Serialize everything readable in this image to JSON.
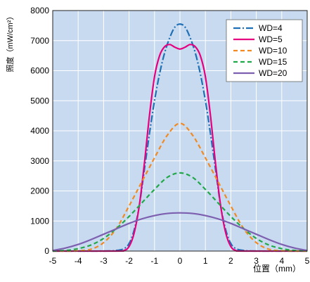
{
  "chart_data": {
    "type": "line",
    "title": "",
    "xlabel": "位置（mm）",
    "ylabel": "照度（mW/cm²）",
    "xlim": [
      -5,
      5
    ],
    "ylim": [
      0,
      8000
    ],
    "x_ticks": [
      -5,
      -4,
      -3,
      -2,
      -1,
      0,
      1,
      2,
      3,
      4,
      5
    ],
    "y_ticks": [
      0,
      1000,
      2000,
      3000,
      4000,
      5000,
      6000,
      7000,
      8000
    ],
    "grid": true,
    "legend_position": "top-right",
    "plot_background": "#c8daf0",
    "series": [
      {
        "name": "WD=4",
        "color": "#1f6fb4",
        "dash": "dash-dot",
        "x": [
          -5,
          -3,
          -2.5,
          -2.2,
          -2.0,
          -1.8,
          -1.6,
          -1.4,
          -1.2,
          -1.0,
          -0.8,
          -0.6,
          -0.4,
          -0.2,
          0,
          0.2,
          0.4,
          0.6,
          0.8,
          1.0,
          1.2,
          1.4,
          1.6,
          1.8,
          2.0,
          2.2,
          2.5,
          3,
          5
        ],
        "y": [
          0,
          0,
          20,
          80,
          250,
          700,
          1500,
          2700,
          3900,
          5000,
          5900,
          6600,
          7100,
          7450,
          7550,
          7450,
          7100,
          6600,
          5900,
          5000,
          3900,
          2700,
          1500,
          700,
          250,
          80,
          20,
          0,
          0
        ]
      },
      {
        "name": "WD=5",
        "color": "#e5007f",
        "dash": "solid",
        "x": [
          -5,
          -2.5,
          -2.2,
          -2.0,
          -1.8,
          -1.6,
          -1.4,
          -1.2,
          -1.0,
          -0.8,
          -0.6,
          -0.4,
          -0.2,
          0,
          0.2,
          0.4,
          0.6,
          0.8,
          1.0,
          1.2,
          1.4,
          1.6,
          1.8,
          2.0,
          2.2,
          2.5,
          5
        ],
        "y": [
          0,
          0,
          20,
          150,
          600,
          1500,
          2900,
          4500,
          5800,
          6500,
          6800,
          6870,
          6780,
          6720,
          6780,
          6870,
          6800,
          6500,
          5800,
          4500,
          2900,
          1500,
          600,
          150,
          20,
          0,
          0
        ]
      },
      {
        "name": "WD=10",
        "color": "#f08a24",
        "dash": "dash",
        "x": [
          -5,
          -4.5,
          -4,
          -3.5,
          -3,
          -2.5,
          -2,
          -1.5,
          -1,
          -0.5,
          0,
          0.5,
          1,
          1.5,
          2,
          2.5,
          3,
          3.5,
          4,
          4.5,
          5
        ],
        "y": [
          0,
          0,
          10,
          60,
          280,
          750,
          1500,
          2300,
          3100,
          3850,
          4250,
          3850,
          3100,
          2300,
          1500,
          750,
          280,
          60,
          10,
          0,
          0
        ]
      },
      {
        "name": "WD=15",
        "color": "#22a84a",
        "dash": "dash",
        "x": [
          -5,
          -4.5,
          -4,
          -3.5,
          -3,
          -2.5,
          -2,
          -1.5,
          -1,
          -0.5,
          0,
          0.5,
          1,
          1.5,
          2,
          2.5,
          3,
          3.5,
          4,
          4.5,
          5
        ],
        "y": [
          0,
          20,
          80,
          200,
          420,
          750,
          1150,
          1600,
          2050,
          2450,
          2600,
          2450,
          2050,
          1600,
          1150,
          750,
          420,
          200,
          80,
          20,
          0
        ]
      },
      {
        "name": "WD=20",
        "color": "#7d5fb0",
        "dash": "solid",
        "x": [
          -5,
          -4.5,
          -4,
          -3.5,
          -3,
          -2.5,
          -2,
          -1.5,
          -1,
          -0.5,
          0,
          0.5,
          1,
          1.5,
          2,
          2.5,
          3,
          3.5,
          4,
          4.5,
          5
        ],
        "y": [
          20,
          100,
          220,
          380,
          560,
          740,
          920,
          1070,
          1180,
          1250,
          1270,
          1250,
          1180,
          1070,
          920,
          740,
          560,
          380,
          220,
          100,
          20
        ]
      }
    ]
  }
}
